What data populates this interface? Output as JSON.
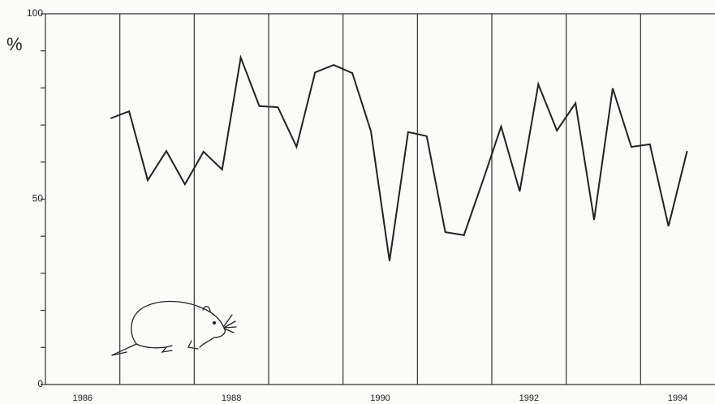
{
  "chart_data": {
    "type": "line",
    "y_label": "%",
    "color": "#222222",
    "x": [
      1986.375,
      1986.625,
      1986.875,
      1987.125,
      1987.375,
      1987.625,
      1987.875,
      1988.125,
      1988.375,
      1988.625,
      1988.875,
      1989.125,
      1989.375,
      1989.625,
      1989.875,
      1990.125,
      1990.375,
      1990.625,
      1990.875,
      1991.125,
      1991.375,
      1991.625,
      1991.875,
      1992.125,
      1992.375,
      1992.625,
      1992.875,
      1993.125,
      1993.375,
      1993.625,
      1993.875,
      1994.125
    ],
    "values": [
      71.8,
      73.7,
      55.1,
      63.0,
      54.0,
      62.8,
      58.0,
      88.2,
      75.1,
      74.8,
      64.1,
      84.2,
      86.2,
      84.0,
      68.3,
      33.3,
      68.1,
      67.0,
      41.1,
      40.3,
      54.7,
      69.6,
      52.1,
      81.0,
      68.5,
      75.9,
      44.4,
      79.9,
      64.1,
      64.8,
      42.7,
      63.0
    ],
    "xlim": [
      1985.5,
      1994.5
    ],
    "xticks": [
      1986,
      1988,
      1990,
      1992,
      1994
    ],
    "xgridlines": [
      1986.5,
      1987.5,
      1988.5,
      1989.5,
      1990.5,
      1991.5,
      1992.5,
      1993.5
    ],
    "ylim": [
      0,
      100
    ],
    "yticks": [
      0,
      50,
      100
    ],
    "yminorticks": [
      10,
      20,
      30,
      40,
      60,
      70,
      80,
      90
    ]
  }
}
